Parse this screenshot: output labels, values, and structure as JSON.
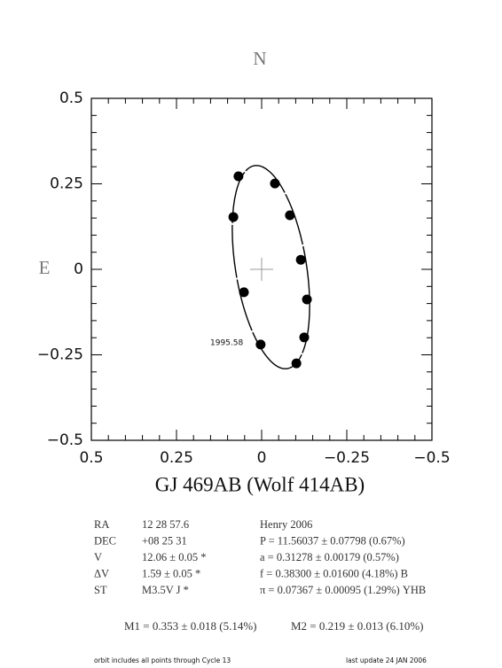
{
  "chart_data": {
    "type": "scatter",
    "title": "GJ 469AB (Wolf 414AB)",
    "x": [
      0.068,
      -0.039,
      0.083,
      -0.083,
      -0.115,
      -0.133,
      0.052,
      -0.125,
      0.003,
      -0.102
    ],
    "values": [
      0.272,
      0.251,
      0.153,
      0.158,
      0.028,
      -0.088,
      -0.067,
      -0.199,
      -0.22,
      -0.275
    ],
    "color": "#000000",
    "xlim": [
      0.5,
      -0.5
    ],
    "xticks": [
      0.5,
      0.25,
      0,
      {
        "value": -0.25,
        "label": "−0.25"
      },
      {
        "value": -0.5,
        "label": "−0.5"
      }
    ],
    "ylim": [
      -0.5,
      0.5
    ],
    "yticks": [
      {
        "value": -0.5,
        "label": "−0.5"
      },
      {
        "value": -0.25,
        "label": "−0.25"
      },
      0,
      0.25,
      0.5
    ],
    "annotations": {
      "north": "N",
      "east": "E",
      "epoch": "1995.58"
    }
  },
  "info": {
    "rows": [
      [
        "RA",
        "12 28 57.6",
        "Henry 2006"
      ],
      [
        "DEC",
        "+08 25 31",
        "P = 11.56037 ± 0.07798 (0.67%)"
      ],
      [
        "V",
        "12.06 ± 0.05 *",
        "a = 0.31278 ± 0.00179 (0.57%)"
      ],
      [
        "ΔV",
        "1.59 ± 0.05 *",
        "f = 0.38300 ± 0.01600 (4.18%) B"
      ],
      [
        "ST",
        "M3.5V J *",
        "π = 0.07367 ± 0.00095 (1.29%) YHB"
      ]
    ],
    "masses": [
      "M1 = 0.353 ± 0.018 (5.14%)",
      "M2 = 0.219 ± 0.013 (6.10%)"
    ],
    "footer_left": "orbit includes all points through Cycle 13",
    "footer_right": "last update 24 JAN 2006"
  }
}
